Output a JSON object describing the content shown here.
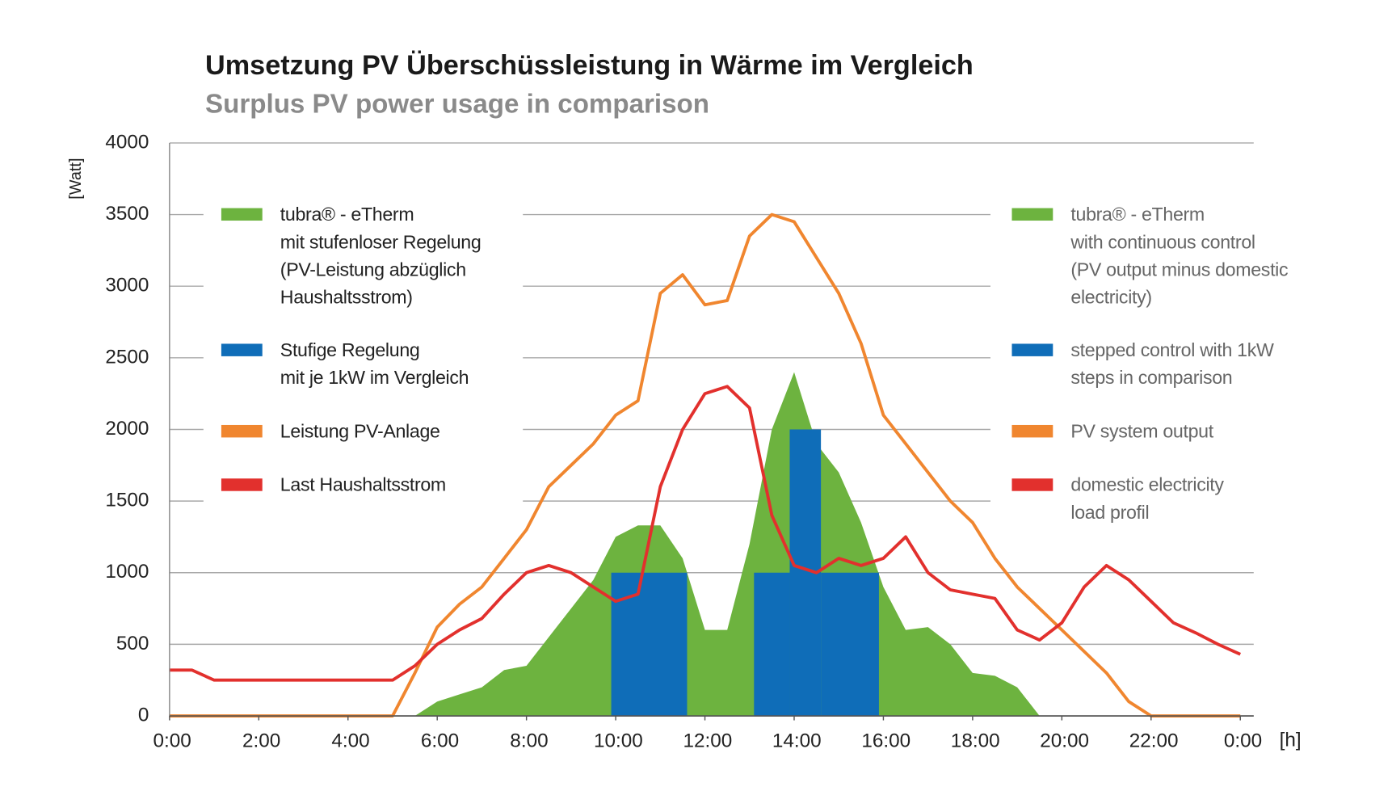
{
  "chart_data": {
    "type": "line",
    "title": "Umsetzung PV Überschüssleistung in Wärme im Vergleich",
    "subtitle": "Surplus PV power usage in comparison",
    "y_label": "[Watt]",
    "x_label": "[h]",
    "xlim": [
      0,
      24
    ],
    "xticks": [
      {
        "value": 0,
        "label": "0:00"
      },
      {
        "value": 2,
        "label": "2:00"
      },
      {
        "value": 4,
        "label": "4:00"
      },
      {
        "value": 6,
        "label": "6:00"
      },
      {
        "value": 8,
        "label": "8:00"
      },
      {
        "value": 10,
        "label": "10:00"
      },
      {
        "value": 12,
        "label": "12:00"
      },
      {
        "value": 14,
        "label": "14:00"
      },
      {
        "value": 16,
        "label": "16:00"
      },
      {
        "value": 18,
        "label": "18:00"
      },
      {
        "value": 20,
        "label": "20:00"
      },
      {
        "value": 22,
        "label": "22:00"
      },
      {
        "value": 24,
        "label": "0:00"
      }
    ],
    "ylim": [
      0,
      4000
    ],
    "yticks": [
      0,
      500,
      1000,
      1500,
      2000,
      2500,
      3000,
      3500,
      4000
    ],
    "grid": true,
    "x": [
      0,
      0.5,
      1,
      1.5,
      2,
      2.5,
      3,
      3.5,
      4,
      4.5,
      5,
      5.5,
      6,
      6.5,
      7,
      7.5,
      8,
      8.5,
      9,
      9.5,
      10,
      10.5,
      11,
      11.5,
      12,
      12.5,
      13,
      13.5,
      14,
      14.5,
      15,
      15.5,
      16,
      16.5,
      17,
      17.5,
      18,
      18.5,
      19,
      19.5,
      20,
      20.5,
      21,
      21.5,
      22,
      22.5,
      23,
      23.5,
      24
    ],
    "series": [
      {
        "name": "tubra® - eTherm\nmit stufenloser Regelung\n(PV-Leistung abzüglich\nHaushaltsstrom)",
        "name_en": "tubra® - eTherm\nwith continuous control\n(PV output minus domestic\nelectricity)",
        "kind": "area",
        "color": "#6db33f",
        "values": [
          0,
          0,
          0,
          0,
          0,
          0,
          0,
          0,
          0,
          0,
          0,
          0,
          100,
          150,
          200,
          320,
          350,
          550,
          750,
          950,
          1250,
          1330,
          1330,
          1100,
          600,
          600,
          1200,
          2000,
          2400,
          1900,
          1700,
          1350,
          900,
          600,
          620,
          500,
          300,
          280,
          200,
          0,
          0,
          0,
          0,
          0,
          0,
          0,
          0,
          0,
          0
        ]
      },
      {
        "name": "Stufige Regelung\nmit je 1kW im Vergleich",
        "name_en": "stepped control with 1kW\nsteps in comparison",
        "kind": "steps",
        "color": "#0f6db8",
        "x": [
          9.9,
          13.1,
          13.9,
          14.6
        ],
        "x_end": [
          11.6,
          13.9,
          14.6,
          15.9
        ],
        "values": [
          1000,
          1000,
          2000,
          1000
        ]
      },
      {
        "name": "Leistung PV-Anlage",
        "name_en": "PV system output",
        "kind": "line",
        "color": "#f0862f",
        "values": [
          0,
          0,
          0,
          0,
          0,
          0,
          0,
          0,
          0,
          0,
          0,
          300,
          620,
          780,
          900,
          1100,
          1300,
          1600,
          1750,
          1900,
          2100,
          2200,
          2950,
          3080,
          2870,
          2900,
          3350,
          3500,
          3450,
          3200,
          2950,
          2600,
          2100,
          1900,
          1700,
          1500,
          1350,
          1100,
          900,
          750,
          600,
          450,
          300,
          100,
          0,
          0,
          0,
          0,
          0
        ]
      },
      {
        "name": "Last Haushaltsstrom",
        "name_en": "domestic electricity\nload profil",
        "kind": "line",
        "color": "#e2302d",
        "values": [
          320,
          320,
          250,
          250,
          250,
          250,
          250,
          250,
          250,
          250,
          250,
          350,
          500,
          600,
          680,
          850,
          1000,
          1050,
          1000,
          900,
          800,
          850,
          1600,
          2000,
          2250,
          2300,
          2150,
          1400,
          1050,
          1000,
          1100,
          1050,
          1100,
          1250,
          1000,
          880,
          850,
          820,
          600,
          530,
          650,
          900,
          1050,
          950,
          800,
          650,
          580,
          500,
          430
        ]
      }
    ]
  }
}
